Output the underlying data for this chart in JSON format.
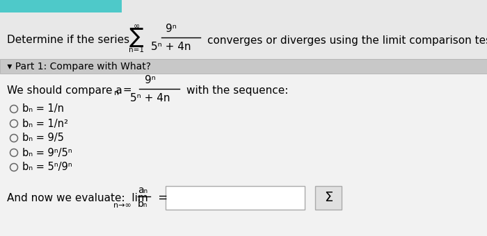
{
  "bg_top": "#c8c8c8",
  "bg_main": "#e8e8e8",
  "white_bg": "#f2f2f2",
  "part1_bar_color": "#c8c8c8",
  "teal_color": "#4ec9c9",
  "title_text": "Determine if the series",
  "series_limits_top": "∞",
  "series_sum": "∑",
  "series_limits_bot": "n=1",
  "series_num": "9ⁿ",
  "series_den": "5ⁿ + 4n",
  "converge_text": "converges or diverges using the limit comparison test.",
  "part1_text": " ▾ Part 1: Compare with What?",
  "compare_pre": "We should compare a",
  "compare_sub": "n",
  "compare_eq": " =",
  "frac_num": "9ⁿ",
  "frac_den": "5ⁿ + 4n",
  "with_seq": "with the sequence:",
  "options": [
    "bₙ = 1/n",
    "bₙ = 1/n²",
    "bₙ = 9/5",
    "bₙ = 9ⁿ/5ⁿ",
    "bₙ = 5ⁿ/9ⁿ"
  ],
  "bottom_pre": "And now we evaluate:  lim",
  "lim_sub": "n→∞",
  "lim_num": "aₙ",
  "lim_den": "bₙ",
  "equals": " =",
  "sigma_symbol": "Σ",
  "input_box_color": "white",
  "sigma_box_color": "#e0e0e0"
}
